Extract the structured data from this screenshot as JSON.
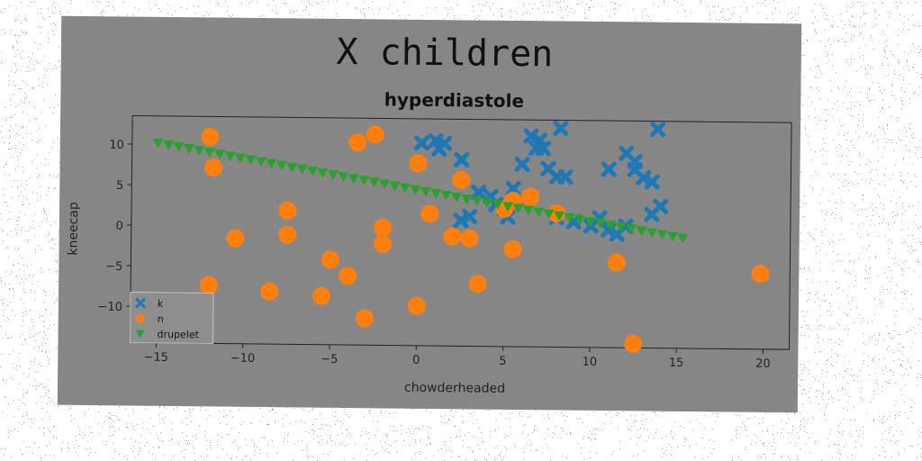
{
  "figure": {
    "suptitle": "X children"
  },
  "chart_data": {
    "type": "scatter",
    "title": "hyperdiastole",
    "xlabel": "chowderheaded",
    "ylabel": "kneecap",
    "xlim": [
      -16.5,
      21.5
    ],
    "ylim": [
      -14.5,
      13.5
    ],
    "xticks": [
      "−15",
      "−10",
      "−5",
      "0",
      "5",
      "10",
      "15",
      "20"
    ],
    "xtick_values": [
      -15,
      -10,
      -5,
      0,
      5,
      10,
      15,
      20
    ],
    "yticks": [
      "10",
      "5",
      "0",
      "−5",
      "−10"
    ],
    "ytick_values": [
      10,
      5,
      0,
      -5,
      -10
    ],
    "grid": false,
    "legend_position": "lower-left",
    "series": [
      {
        "name": "k",
        "marker": "x",
        "color": "#1f77b4",
        "points": [
          [
            0.2,
            10.5
          ],
          [
            1.0,
            10.8
          ],
          [
            1.2,
            9.8
          ],
          [
            1.5,
            10.5
          ],
          [
            2.5,
            8.5
          ],
          [
            3.0,
            1.5
          ],
          [
            2.5,
            1.0
          ],
          [
            3.5,
            4.5
          ],
          [
            4.2,
            4.0
          ],
          [
            4.5,
            3.0
          ],
          [
            5.0,
            2.5
          ],
          [
            5.5,
            5.0
          ],
          [
            5.2,
            1.5
          ],
          [
            6.0,
            8.0
          ],
          [
            6.5,
            11.5
          ],
          [
            7.0,
            11.0
          ],
          [
            7.2,
            10.0
          ],
          [
            7.5,
            7.5
          ],
          [
            8.0,
            6.5
          ],
          [
            8.2,
            12.5
          ],
          [
            8.5,
            6.5
          ],
          [
            6.8,
            10.0
          ],
          [
            11.0,
            7.5
          ],
          [
            12.0,
            9.5
          ],
          [
            12.5,
            7.5
          ],
          [
            13.0,
            6.5
          ],
          [
            13.5,
            6.0
          ],
          [
            13.8,
            12.5
          ],
          [
            14.0,
            3.0
          ],
          [
            13.5,
            2.0
          ],
          [
            10.5,
            1.5
          ],
          [
            10.0,
            0.5
          ],
          [
            11.0,
            0.0
          ],
          [
            11.5,
            -0.5
          ],
          [
            12.0,
            0.5
          ],
          [
            8.0,
            1.5
          ],
          [
            9.0,
            1.0
          ],
          [
            12.5,
            8.5
          ]
        ]
      },
      {
        "name": "n",
        "marker": "o",
        "color": "#ff7f0e",
        "points": [
          [
            -12.0,
            11.0
          ],
          [
            -11.8,
            7.2
          ],
          [
            -12.0,
            -7.3
          ],
          [
            -10.5,
            -1.5
          ],
          [
            -7.5,
            2.0
          ],
          [
            -7.5,
            -1.0
          ],
          [
            -8.5,
            -8.0
          ],
          [
            -5.0,
            -4.0
          ],
          [
            -5.5,
            -8.5
          ],
          [
            -4.0,
            -6.0
          ],
          [
            -3.5,
            10.5
          ],
          [
            -2.5,
            11.5
          ],
          [
            -3.0,
            -11.2
          ],
          [
            -2.0,
            0.0
          ],
          [
            -2.0,
            -2.0
          ],
          [
            0.0,
            8.0
          ],
          [
            0.7,
            1.8
          ],
          [
            0.0,
            -9.6
          ],
          [
            2.0,
            -1.0
          ],
          [
            2.5,
            6.0
          ],
          [
            3.0,
            -1.2
          ],
          [
            3.5,
            -6.8
          ],
          [
            5.0,
            2.5
          ],
          [
            5.5,
            3.5
          ],
          [
            5.5,
            -2.5
          ],
          [
            6.5,
            4.0
          ],
          [
            8.0,
            2.0
          ],
          [
            11.5,
            -4.0
          ],
          [
            12.5,
            -14.0
          ],
          [
            19.8,
            -5.2
          ]
        ]
      },
      {
        "name": "drupelet",
        "marker": "v",
        "color": "#2ca02c",
        "line": {
          "x_start": -15.0,
          "x_end": 15.3,
          "y_start": 10.2,
          "y_end": -0.9,
          "count": 52
        }
      }
    ]
  }
}
